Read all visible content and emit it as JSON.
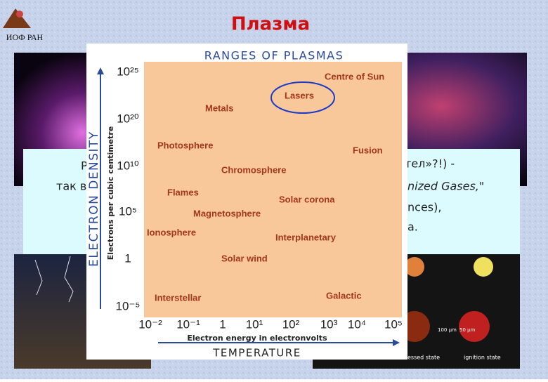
{
  "header": {
    "logo": "ИОФ РАН",
    "title": "Плазма"
  },
  "text_box": {
    "left_lines": [
      "P",
      "так в"
    ],
    "right_lines": [
      "тел»?!) -",
      "nized Gases,\"",
      "nces),",
      "a."
    ]
  },
  "figure": {
    "title": "RANGES OF PLASMAS",
    "y_axis_title": "ELECTRON DENSITY",
    "y_axis_subtitle": "Electrons per cubic centimetre",
    "x_axis_subtitle": "Electron energy in electronvolts",
    "x_axis_title": "TEMPERATURE",
    "y_tick_labels": [
      "10²⁵",
      "10²⁰",
      "10¹⁰",
      "10⁵",
      "1",
      "10⁻⁵"
    ],
    "x_tick_labels": [
      "10⁻²",
      "10⁻¹",
      "1",
      "10¹",
      "10²",
      "10³",
      "10⁴",
      "10⁵"
    ],
    "regions": [
      "Centre of Sun",
      "Lasers",
      "Metals",
      "Photosphere",
      "Fusion",
      "Chromosphere",
      "Flames",
      "Solar corona",
      "Magnetosphere",
      "Ionosphere",
      "Interplanetary",
      "Solar wind",
      "Interstellar",
      "Galactic"
    ]
  },
  "photo_labels": [
    "100 μm",
    "50 μm",
    "essed state",
    "ignition state"
  ]
}
